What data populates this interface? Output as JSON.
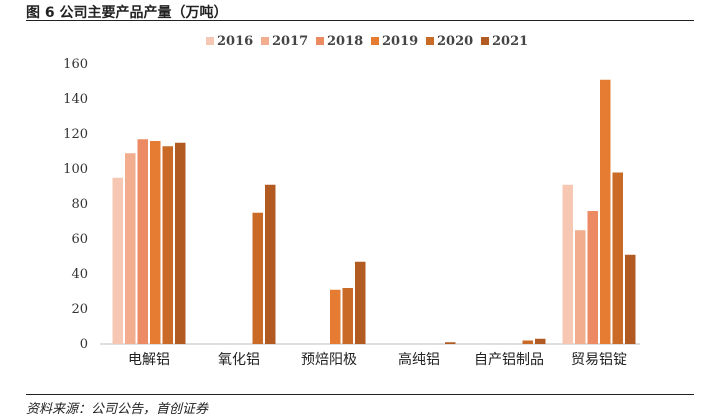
{
  "figure": {
    "title": "图 6 公司主要产品产量（万吨）",
    "source": "资料来源：公司公告，首创证券"
  },
  "chart_data": {
    "type": "bar",
    "categories": [
      "电解铝",
      "氧化铝",
      "预焙阳极",
      "高纯铝",
      "自产铝制品",
      "贸易铝锭"
    ],
    "series": [
      {
        "name": "2016",
        "color": "#f6c8b4",
        "values": [
          95,
          0,
          0,
          0,
          0,
          91
        ]
      },
      {
        "name": "2017",
        "color": "#f2ac8e",
        "values": [
          109,
          0,
          0,
          0,
          0,
          65
        ]
      },
      {
        "name": "2018",
        "color": "#ec8a63",
        "values": [
          117,
          0,
          0,
          0,
          0,
          76
        ]
      },
      {
        "name": "2019",
        "color": "#e67c32",
        "values": [
          116,
          0,
          31,
          0,
          0,
          151
        ]
      },
      {
        "name": "2020",
        "color": "#c96a26",
        "values": [
          113,
          75,
          32,
          0,
          2,
          98
        ]
      },
      {
        "name": "2021",
        "color": "#b15b22",
        "values": [
          115,
          91,
          47,
          1,
          3,
          51
        ]
      }
    ],
    "ylim": [
      0,
      160
    ],
    "yticks": [
      "0",
      "20",
      "40",
      "60",
      "80",
      "100",
      "120",
      "140",
      "160"
    ],
    "grid": false,
    "legend": "top"
  }
}
